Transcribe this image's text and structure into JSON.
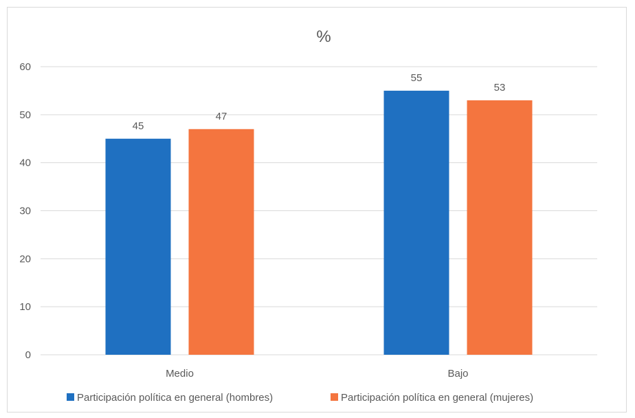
{
  "chart_data": {
    "type": "bar",
    "title": "%",
    "categories": [
      "Medio",
      "Bajo"
    ],
    "series": [
      {
        "name": "Participación política en general (hombres)",
        "values": [
          45,
          55
        ],
        "color": "#1f70c1"
      },
      {
        "name": "Participación política en general (mujeres)",
        "values": [
          47,
          53
        ],
        "color": "#f4753f"
      }
    ],
    "y_ticks": [
      "0",
      "10",
      "20",
      "30",
      "40",
      "50",
      "60"
    ],
    "ylim": [
      0,
      60
    ],
    "grid": true,
    "legend": "bottom",
    "colors": {
      "grid": "#d9d9d9",
      "text": "#595959"
    }
  }
}
